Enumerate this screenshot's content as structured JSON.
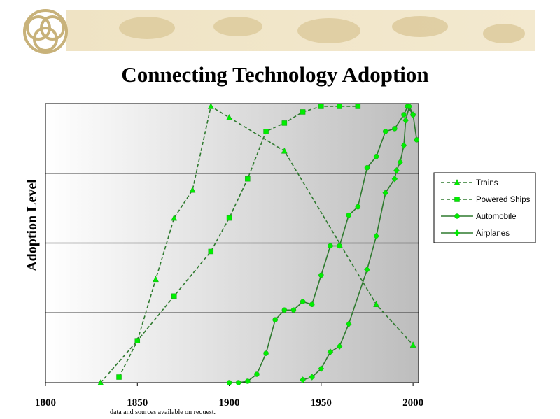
{
  "chart_data": {
    "type": "line",
    "title": "Connecting Technology Adoption",
    "y_label": "Adoption Level",
    "footnote": "data and sources available on request.",
    "xlim": [
      1800,
      2003
    ],
    "xticks": [
      1800,
      1850,
      1900,
      1950,
      2000
    ],
    "ylim": [
      0,
      100
    ],
    "grid_y": [
      25,
      50,
      75
    ],
    "legend": "right",
    "series": [
      {
        "name": "Trains",
        "color": "#00ee00",
        "line_color": "#2f7a2f",
        "dashed": true,
        "marker": "triangle",
        "x": [
          1830,
          1850,
          1860,
          1870,
          1880,
          1890,
          1900,
          1930,
          1980,
          2000
        ],
        "values": [
          0,
          15,
          37,
          59,
          69,
          99,
          95,
          83,
          28,
          13.5
        ]
      },
      {
        "name": "Powered Ships",
        "color": "#00ee00",
        "line_color": "#2f7a2f",
        "dashed": true,
        "marker": "square",
        "x": [
          1840,
          1850,
          1870,
          1890,
          1900,
          1910,
          1920,
          1930,
          1940,
          1950,
          1960,
          1970
        ],
        "values": [
          2,
          15,
          31,
          47,
          59,
          73,
          90,
          93,
          97,
          99,
          99,
          99
        ]
      },
      {
        "name": "Automobile",
        "color": "#00ee00",
        "line_color": "#2f7a2f",
        "dashed": false,
        "marker": "circle",
        "x": [
          1900,
          1905,
          1910,
          1915,
          1920,
          1925,
          1930,
          1935,
          1940,
          1945,
          1950,
          1955,
          1960,
          1965,
          1970,
          1975,
          1980,
          1985,
          1990,
          1995,
          1997,
          2000,
          2002
        ],
        "values": [
          0,
          0,
          0.5,
          3,
          10.5,
          22.5,
          26,
          26,
          29,
          28,
          38.5,
          49,
          49,
          60,
          63,
          77,
          81,
          90,
          91,
          96,
          99,
          96,
          87
        ]
      },
      {
        "name": "Airplanes",
        "color": "#00ee00",
        "line_color": "#2f7a2f",
        "dashed": false,
        "marker": "diamond",
        "x": [
          1940,
          1945,
          1950,
          1955,
          1960,
          1965,
          1975,
          1980,
          1985,
          1990,
          1991,
          1993,
          1995,
          1996,
          1998,
          2000
        ],
        "values": [
          1,
          2,
          5,
          11,
          13,
          21,
          40.5,
          52.5,
          68,
          73,
          76,
          79,
          85,
          94,
          99,
          96
        ]
      }
    ]
  }
}
